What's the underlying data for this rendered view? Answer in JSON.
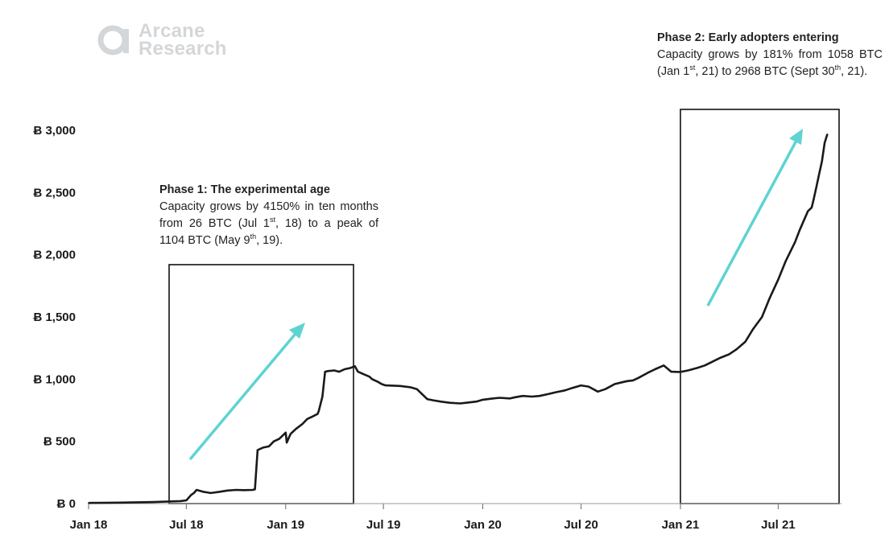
{
  "logo": {
    "line1": "Arcane",
    "line2": "Research",
    "icon": "arcane-ring-logo"
  },
  "annotations": {
    "phase1": {
      "heading": "Phase 1: The experimental age",
      "b1": "Capacity grows by 4150% in ten months from 26 BTC (Jul 1",
      "s1": "st",
      "b2": ", 18) to a peak of 1104 BTC (May 9",
      "s2": "th",
      "b3": ", 19)."
    },
    "phase2": {
      "heading": "Phase 2: Early adopters entering",
      "b1": "Capacity grows by 181% from 1058 BTC (Jan 1",
      "s1": "st",
      "b2": ", 21) to 2968 BTC (Sept 30",
      "s2": "th",
      "b3": ", 21)."
    }
  },
  "colors": {
    "line": "#1a1a1a",
    "arrow": "#5fd3d3",
    "box": "#111111",
    "logo": "#d4d7d9"
  },
  "chart_data": {
    "type": "line",
    "title": "",
    "xlabel": "",
    "ylabel": "",
    "y_tick_labels": [
      "Ƀ 0",
      "Ƀ 500",
      "Ƀ 1,000",
      "Ƀ 1,500",
      "Ƀ 2,000",
      "Ƀ 2,500",
      "Ƀ 3,000"
    ],
    "y_ticks": [
      0,
      500,
      1000,
      1500,
      2000,
      2500,
      3000
    ],
    "ylim": [
      0,
      3000
    ],
    "x_tick_labels": [
      "Jan 18",
      "Jul 18",
      "Jan 19",
      "Jul 19",
      "Jan 20",
      "Jul 20",
      "Jan 21",
      "Jul 21"
    ],
    "x_ticks": [
      "2018-01-01",
      "2018-07-01",
      "2019-01-01",
      "2019-07-01",
      "2020-01-01",
      "2020-07-01",
      "2021-01-01",
      "2021-07-01"
    ],
    "xlim": [
      "2018-01-01",
      "2021-11-15"
    ],
    "grid": false,
    "legend": "none",
    "series": [
      {
        "x": [
          "2018-01-01",
          "2018-03-01",
          "2018-05-01",
          "2018-06-20",
          "2018-07-01",
          "2018-07-10",
          "2018-07-15",
          "2018-07-20",
          "2018-08-01",
          "2018-08-15",
          "2018-09-01",
          "2018-09-15",
          "2018-10-01",
          "2018-10-15",
          "2018-11-01",
          "2018-11-05",
          "2018-11-10",
          "2018-11-20",
          "2018-12-01",
          "2018-12-10",
          "2018-12-20",
          "2019-01-01",
          "2019-01-03",
          "2019-01-10",
          "2019-01-20",
          "2019-02-01",
          "2019-02-10",
          "2019-02-20",
          "2019-03-01",
          "2019-03-03",
          "2019-03-10",
          "2019-03-15",
          "2019-03-20",
          "2019-04-01",
          "2019-04-10",
          "2019-04-20",
          "2019-05-01",
          "2019-05-09",
          "2019-05-15",
          "2019-05-25",
          "2019-06-05",
          "2019-06-10",
          "2019-06-20",
          "2019-06-28",
          "2019-07-05",
          "2019-07-06",
          "2019-08-01",
          "2019-08-20",
          "2019-09-01",
          "2019-09-20",
          "2019-10-01",
          "2019-10-15",
          "2019-11-01",
          "2019-11-20",
          "2019-12-01",
          "2019-12-20",
          "2020-01-01",
          "2020-01-20",
          "2020-02-01",
          "2020-02-20",
          "2020-03-01",
          "2020-03-15",
          "2020-04-01",
          "2020-04-15",
          "2020-05-01",
          "2020-05-15",
          "2020-06-01",
          "2020-06-15",
          "2020-07-01",
          "2020-07-15",
          "2020-08-01",
          "2020-08-15",
          "2020-09-01",
          "2020-09-15",
          "2020-09-25",
          "2020-10-05",
          "2020-10-15",
          "2020-11-01",
          "2020-11-15",
          "2020-12-01",
          "2020-12-15",
          "2021-01-01",
          "2021-01-15",
          "2021-02-01",
          "2021-02-15",
          "2021-03-01",
          "2021-03-15",
          "2021-04-01",
          "2021-04-15",
          "2021-05-01",
          "2021-05-15",
          "2021-06-01",
          "2021-06-15",
          "2021-07-01",
          "2021-07-15",
          "2021-08-01",
          "2021-08-10",
          "2021-08-20",
          "2021-08-25",
          "2021-09-01",
          "2021-09-05",
          "2021-09-10",
          "2021-09-15",
          "2021-09-20",
          "2021-09-25",
          "2021-09-30"
        ],
        "values": [
          5,
          8,
          12,
          20,
          26,
          70,
          85,
          110,
          95,
          85,
          95,
          105,
          110,
          108,
          110,
          115,
          430,
          450,
          460,
          500,
          520,
          570,
          490,
          560,
          600,
          640,
          680,
          700,
          720,
          740,
          860,
          1060,
          1065,
          1070,
          1060,
          1080,
          1090,
          1104,
          1060,
          1040,
          1020,
          1000,
          980,
          960,
          950,
          950,
          945,
          935,
          920,
          840,
          830,
          820,
          810,
          805,
          810,
          820,
          835,
          845,
          850,
          845,
          855,
          865,
          860,
          865,
          880,
          895,
          910,
          930,
          950,
          940,
          900,
          920,
          960,
          975,
          985,
          990,
          1010,
          1050,
          1080,
          1110,
          1060,
          1058,
          1070,
          1090,
          1110,
          1140,
          1170,
          1200,
          1240,
          1300,
          1400,
          1500,
          1650,
          1800,
          1950,
          2100,
          2200,
          2300,
          2350,
          2380,
          2450,
          2550,
          2650,
          2750,
          2900,
          2968
        ]
      }
    ]
  }
}
